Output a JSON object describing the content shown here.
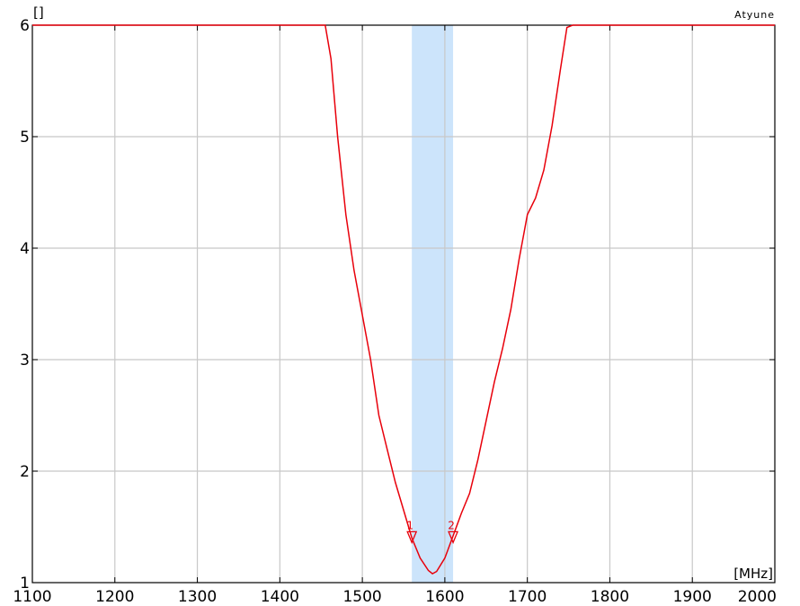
{
  "chart_data": {
    "type": "line",
    "title": "Atyune",
    "y_unit": "[]",
    "x_unit": "[MHz]",
    "xlim": [
      1100,
      2000
    ],
    "ylim": [
      1,
      6
    ],
    "x_ticks": [
      1100,
      1200,
      1300,
      1400,
      1500,
      1600,
      1700,
      1800,
      1900,
      2000
    ],
    "y_ticks": [
      1,
      2,
      3,
      4,
      5,
      6
    ],
    "grid": true,
    "band": {
      "x_start": 1560,
      "x_end": 1610,
      "color": "#cce4fb"
    },
    "series": [
      {
        "color": "#e8000b",
        "x": [
          1100,
          1455,
          1462,
          1470,
          1480,
          1490,
          1500,
          1510,
          1520,
          1530,
          1540,
          1550,
          1560,
          1570,
          1580,
          1585,
          1590,
          1600,
          1610,
          1620,
          1630,
          1640,
          1650,
          1660,
          1670,
          1680,
          1690,
          1700,
          1710,
          1720,
          1730,
          1740,
          1748,
          1755,
          2000
        ],
        "y": [
          6.0,
          6.0,
          5.7,
          5.0,
          4.3,
          3.8,
          3.4,
          3.0,
          2.5,
          2.2,
          1.9,
          1.65,
          1.4,
          1.22,
          1.11,
          1.08,
          1.1,
          1.22,
          1.42,
          1.62,
          1.8,
          2.1,
          2.45,
          2.8,
          3.1,
          3.45,
          3.9,
          4.3,
          4.45,
          4.7,
          5.1,
          5.6,
          5.98,
          6.0,
          6.0
        ]
      }
    ],
    "markers": [
      {
        "label": "1",
        "x": 1560,
        "y": 1.4
      },
      {
        "label": "2",
        "x": 1610,
        "y": 1.4
      }
    ]
  }
}
